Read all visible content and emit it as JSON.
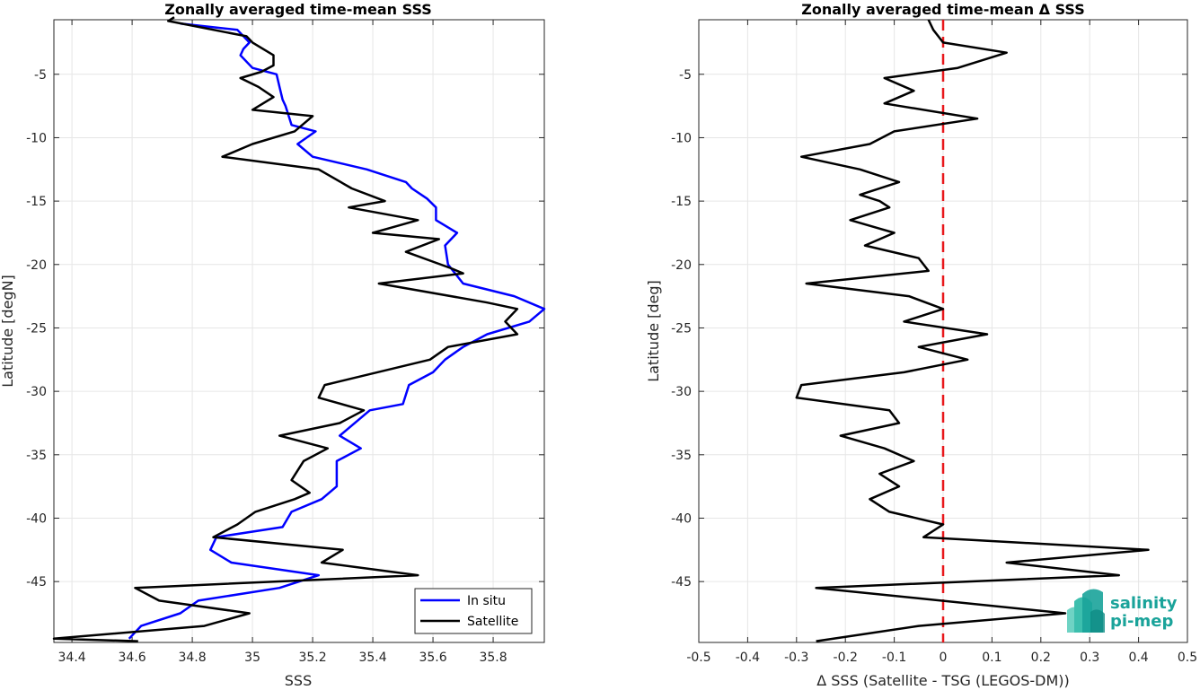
{
  "chart_data": [
    {
      "type": "line",
      "title": "Zonally averaged time-mean SSS",
      "xlabel": "SSS",
      "ylabel": "Latitude [degN]",
      "xlim": [
        34.34,
        35.97
      ],
      "ylim": [
        -49.8,
        -0.7
      ],
      "xticks": [
        "34.4",
        "34.6",
        "34.8",
        "35",
        "35.2",
        "35.4",
        "35.6",
        "35.8"
      ],
      "yticks": [
        "-5",
        "-10",
        "-15",
        "-20",
        "-25",
        "-30",
        "-35",
        "-40",
        "-45"
      ],
      "grid": true,
      "legend": {
        "placement": "bottom-right",
        "entries": [
          {
            "label": "In situ",
            "color": "#0000ff"
          },
          {
            "label": "Satellite",
            "color": "#000000"
          }
        ]
      },
      "series": [
        {
          "name": "In situ",
          "color": "#0000ff",
          "points": [
            [
              34.76,
              -1.0
            ],
            [
              34.95,
              -1.5
            ],
            [
              34.99,
              -2.5
            ],
            [
              34.97,
              -3.0
            ],
            [
              34.96,
              -3.5
            ],
            [
              35.0,
              -4.5
            ],
            [
              35.08,
              -5.0
            ],
            [
              35.09,
              -6.0
            ],
            [
              35.1,
              -7.0
            ],
            [
              35.11,
              -7.5
            ],
            [
              35.13,
              -9.0
            ],
            [
              35.21,
              -9.5
            ],
            [
              35.15,
              -10.5
            ],
            [
              35.2,
              -11.5
            ],
            [
              35.38,
              -12.5
            ],
            [
              35.51,
              -13.5
            ],
            [
              35.53,
              -14.0
            ],
            [
              35.58,
              -14.8
            ],
            [
              35.61,
              -15.5
            ],
            [
              35.61,
              -16.5
            ],
            [
              35.68,
              -17.5
            ],
            [
              35.64,
              -18.5
            ],
            [
              35.65,
              -20.0
            ],
            [
              35.7,
              -21.5
            ],
            [
              35.87,
              -22.5
            ],
            [
              35.97,
              -23.5
            ],
            [
              35.92,
              -24.5
            ],
            [
              35.78,
              -25.5
            ],
            [
              35.7,
              -26.5
            ],
            [
              35.64,
              -27.5
            ],
            [
              35.6,
              -28.5
            ],
            [
              35.52,
              -29.5
            ],
            [
              35.5,
              -31.0
            ],
            [
              35.39,
              -31.5
            ],
            [
              35.29,
              -33.5
            ],
            [
              35.36,
              -34.5
            ],
            [
              35.28,
              -35.5
            ],
            [
              35.28,
              -37.5
            ],
            [
              35.23,
              -38.5
            ],
            [
              35.13,
              -39.5
            ],
            [
              35.1,
              -40.7
            ],
            [
              34.88,
              -41.5
            ],
            [
              34.86,
              -42.5
            ],
            [
              34.93,
              -43.5
            ],
            [
              35.22,
              -44.5
            ],
            [
              35.09,
              -45.5
            ],
            [
              34.82,
              -46.5
            ],
            [
              34.76,
              -47.5
            ],
            [
              34.63,
              -48.5
            ],
            [
              34.59,
              -49.5
            ]
          ]
        },
        {
          "name": "Satellite",
          "color": "#000000",
          "points": [
            [
              34.74,
              -0.5
            ],
            [
              34.72,
              -0.8
            ],
            [
              34.98,
              -2.0
            ],
            [
              35.0,
              -2.5
            ],
            [
              35.07,
              -3.5
            ],
            [
              35.07,
              -4.3
            ],
            [
              35.03,
              -4.8
            ],
            [
              34.96,
              -5.3
            ],
            [
              35.02,
              -6.0
            ],
            [
              35.07,
              -6.8
            ],
            [
              35.0,
              -7.8
            ],
            [
              35.2,
              -8.3
            ],
            [
              35.14,
              -9.5
            ],
            [
              35.0,
              -10.5
            ],
            [
              34.9,
              -11.5
            ],
            [
              35.22,
              -12.5
            ],
            [
              35.33,
              -14.0
            ],
            [
              35.44,
              -15.0
            ],
            [
              35.32,
              -15.5
            ],
            [
              35.55,
              -16.5
            ],
            [
              35.4,
              -17.5
            ],
            [
              35.62,
              -18.0
            ],
            [
              35.51,
              -19.0
            ],
            [
              35.66,
              -20.3
            ],
            [
              35.7,
              -20.7
            ],
            [
              35.42,
              -21.5
            ],
            [
              35.78,
              -23.0
            ],
            [
              35.88,
              -23.5
            ],
            [
              35.84,
              -24.5
            ],
            [
              35.88,
              -25.5
            ],
            [
              35.65,
              -26.5
            ],
            [
              35.59,
              -27.5
            ],
            [
              35.24,
              -29.5
            ],
            [
              35.22,
              -30.5
            ],
            [
              35.37,
              -31.5
            ],
            [
              35.29,
              -32.5
            ],
            [
              35.09,
              -33.5
            ],
            [
              35.25,
              -34.5
            ],
            [
              35.17,
              -35.5
            ],
            [
              35.13,
              -37.0
            ],
            [
              35.19,
              -38.0
            ],
            [
              35.14,
              -38.5
            ],
            [
              35.01,
              -39.5
            ],
            [
              34.95,
              -40.5
            ],
            [
              34.87,
              -41.5
            ],
            [
              35.3,
              -42.5
            ],
            [
              35.23,
              -43.5
            ],
            [
              35.55,
              -44.5
            ],
            [
              34.61,
              -45.5
            ],
            [
              34.69,
              -46.5
            ],
            [
              34.99,
              -47.5
            ],
            [
              34.84,
              -48.5
            ],
            [
              34.34,
              -49.5
            ],
            [
              34.62,
              -49.7
            ]
          ]
        }
      ]
    },
    {
      "type": "line",
      "title": "Zonally averaged time-mean Δ SSS",
      "xlabel": "Δ SSS (Satellite - TSG (LEGOS-DM))",
      "ylabel": "Latitude [deg]",
      "xlim": [
        -0.5,
        0.5
      ],
      "ylim": [
        -49.8,
        -0.7
      ],
      "xticks": [
        "-0.5",
        "-0.4",
        "-0.3",
        "-0.2",
        "-0.1",
        "0",
        "0.1",
        "0.2",
        "0.3",
        "0.4",
        "0.5"
      ],
      "yticks": [
        "-5",
        "-10",
        "-15",
        "-20",
        "-25",
        "-30",
        "-35",
        "-40",
        "-45"
      ],
      "grid": true,
      "reference_line": {
        "x": 0,
        "color": "#e8171b",
        "style": "dashed"
      },
      "series": [
        {
          "color": "#000000",
          "points": [
            [
              -0.03,
              -0.7
            ],
            [
              -0.02,
              -1.5
            ],
            [
              -0.01,
              -2.0
            ],
            [
              0.0,
              -2.5
            ],
            [
              0.13,
              -3.3
            ],
            [
              0.03,
              -4.5
            ],
            [
              -0.12,
              -5.3
            ],
            [
              -0.06,
              -6.3
            ],
            [
              -0.12,
              -7.3
            ],
            [
              0.07,
              -8.5
            ],
            [
              -0.1,
              -9.5
            ],
            [
              -0.15,
              -10.5
            ],
            [
              -0.29,
              -11.5
            ],
            [
              -0.17,
              -12.5
            ],
            [
              -0.09,
              -13.5
            ],
            [
              -0.17,
              -14.5
            ],
            [
              -0.13,
              -15.0
            ],
            [
              -0.11,
              -15.5
            ],
            [
              -0.19,
              -16.5
            ],
            [
              -0.1,
              -17.5
            ],
            [
              -0.16,
              -18.5
            ],
            [
              -0.05,
              -19.5
            ],
            [
              -0.03,
              -20.5
            ],
            [
              -0.28,
              -21.5
            ],
            [
              -0.07,
              -22.5
            ],
            [
              0.0,
              -23.5
            ],
            [
              -0.08,
              -24.5
            ],
            [
              0.09,
              -25.5
            ],
            [
              -0.05,
              -26.5
            ],
            [
              0.05,
              -27.5
            ],
            [
              -0.08,
              -28.5
            ],
            [
              -0.29,
              -29.5
            ],
            [
              -0.3,
              -30.5
            ],
            [
              -0.11,
              -31.5
            ],
            [
              -0.09,
              -32.5
            ],
            [
              -0.21,
              -33.5
            ],
            [
              -0.12,
              -34.5
            ],
            [
              -0.06,
              -35.5
            ],
            [
              -0.13,
              -36.5
            ],
            [
              -0.09,
              -37.5
            ],
            [
              -0.15,
              -38.5
            ],
            [
              -0.11,
              -39.5
            ],
            [
              0.0,
              -40.5
            ],
            [
              -0.04,
              -41.5
            ],
            [
              0.42,
              -42.5
            ],
            [
              0.13,
              -43.5
            ],
            [
              0.36,
              -44.5
            ],
            [
              -0.26,
              -45.5
            ],
            [
              0.25,
              -47.5
            ],
            [
              -0.05,
              -48.5
            ],
            [
              -0.26,
              -49.7
            ]
          ]
        }
      ]
    }
  ],
  "logo": {
    "line1": "salinity",
    "line2": "pi-mep"
  }
}
